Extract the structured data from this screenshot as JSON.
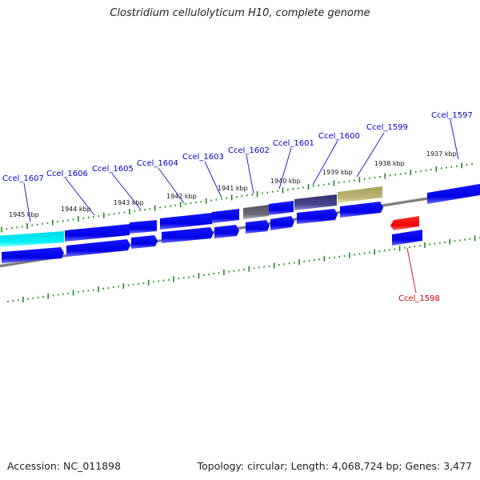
{
  "title": "Clostridium cellulolyticum H10, complete genome",
  "footer": {
    "accession": "Accession: NC_011898",
    "summary": "Topology: circular; Length: 4,068,724 bp; Genes: 3,477"
  },
  "colors": {
    "gene_blue": "#0000ee",
    "gene_highlight": "#00e8f0",
    "gene_gray": "#666677",
    "gene_slate": "#3f3d80",
    "gene_khaki": "#b3ad6a",
    "gene_red": "#ee0000",
    "label_blue": "#0000cc",
    "label_red": "#cc0000",
    "tick_green": "#1a8a1a",
    "backbone": "#888888"
  },
  "scale_labels": [
    "1945 kbp",
    "1944 kbp",
    "1943 kbp",
    "1942 kbp",
    "1941 kbp",
    "1940 kbp",
    "1939 kbp",
    "1938 kbp",
    "1937 kbp"
  ],
  "gene_labels": [
    {
      "text": "Ccel_1607",
      "color": "blue"
    },
    {
      "text": "Ccel_1606",
      "color": "blue"
    },
    {
      "text": "Ccel_1605",
      "color": "blue"
    },
    {
      "text": "Ccel_1604",
      "color": "blue"
    },
    {
      "text": "Ccel_1603",
      "color": "blue"
    },
    {
      "text": "Ccel_1602",
      "color": "blue"
    },
    {
      "text": "Ccel_1601",
      "color": "blue"
    },
    {
      "text": "Ccel_1600",
      "color": "blue"
    },
    {
      "text": "Ccel_1599",
      "color": "blue"
    },
    {
      "text": "Ccel_1597",
      "color": "blue"
    },
    {
      "text": "Ccel_1598",
      "color": "red"
    }
  ]
}
